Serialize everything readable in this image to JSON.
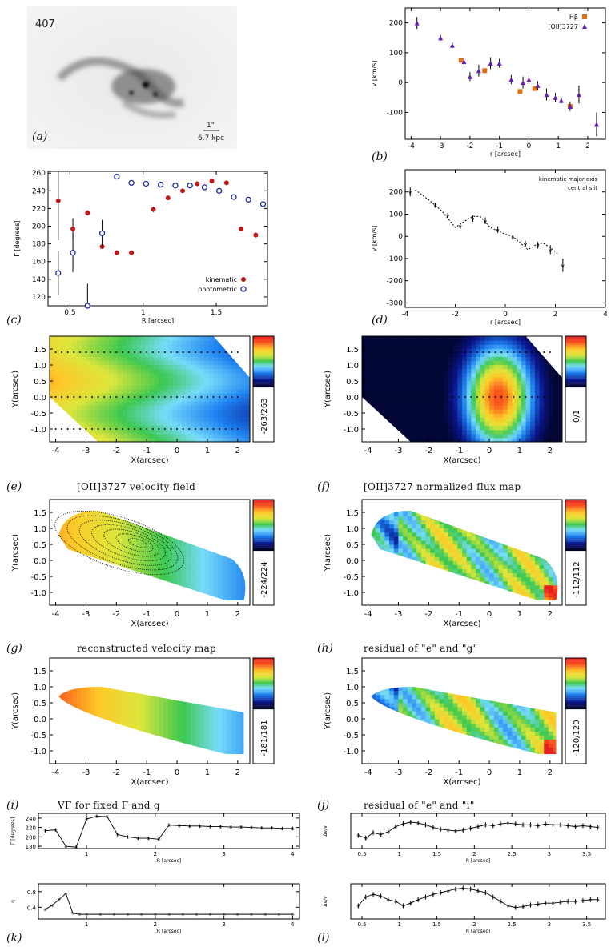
{
  "figure": {
    "labels": {
      "a": "(a)",
      "b": "(b)",
      "c": "(c)",
      "d": "(d)",
      "e": "(e)",
      "f": "(f)",
      "g": "(g)",
      "h": "(h)",
      "i": "(i)",
      "j": "(j)",
      "k": "(k)",
      "l": "(l)"
    },
    "titles": {
      "f": "[OII]3727 velocity field",
      "fmap": "[OII]3727 normalized flux map",
      "g": "reconstructed velocity map",
      "h": "residual of \"e\" and \"g\"",
      "i": "VF for fixed Γ and q",
      "j": "residual of \"e\" and \"i\""
    },
    "image_a": {
      "object": "407",
      "scale_bar": "1\"",
      "scale_text": "6.7 kpc"
    },
    "colorbars": {
      "e": "-263/263",
      "f": "0/1",
      "g": "-224/224",
      "h": "-112/112",
      "i": "-181/181",
      "j": "-120/120"
    },
    "colors": {
      "kinematic": "#c0181a",
      "photometric": "#1b2aa0",
      "ha": "#e07010",
      "oii": "#6a1fa8",
      "line": "#000000"
    }
  },
  "chart_data": [
    {
      "id": "b",
      "type": "scatter",
      "xlabel": "r [arcsec]",
      "ylabel": "v [km/s]",
      "xlim": [
        -4.2,
        2.6
      ],
      "ylim": [
        -190,
        250
      ],
      "xticks": [
        -4,
        -3,
        -2,
        -1,
        0,
        1,
        2
      ],
      "yticks": [
        -100,
        0,
        100,
        200
      ],
      "series": [
        {
          "name": "Hβ",
          "color": "#e07010",
          "marker": "square",
          "x": [
            -2.3,
            -1.5,
            -0.3,
            0.2,
            1.4
          ],
          "y": [
            75,
            40,
            -30,
            -20,
            -80
          ]
        },
        {
          "name": "[OII]3727",
          "color": "#6a1fa8",
          "marker": "triangle",
          "x": [
            -3.8,
            -3.0,
            -2.6,
            -2.2,
            -2.0,
            -1.7,
            -1.3,
            -1.0,
            -0.6,
            -0.2,
            0.0,
            0.3,
            0.6,
            0.9,
            1.1,
            1.4,
            1.7,
            2.3
          ],
          "y": [
            200,
            150,
            125,
            70,
            20,
            40,
            65,
            65,
            10,
            0,
            10,
            -10,
            -40,
            -50,
            -60,
            -80,
            -40,
            -140
          ],
          "err": [
            20,
            10,
            10,
            10,
            15,
            20,
            20,
            15,
            15,
            20,
            15,
            15,
            20,
            15,
            10,
            15,
            30,
            40
          ]
        }
      ],
      "legend": "top-right"
    },
    {
      "id": "c",
      "type": "scatter",
      "xlabel": "R [arcsec]",
      "ylabel": "Γ [degrees]",
      "xlim": [
        0.35,
        1.85
      ],
      "ylim": [
        110,
        262
      ],
      "xticks": [
        0.5,
        1.0,
        1.5
      ],
      "yticks": [
        120,
        140,
        160,
        180,
        200,
        220,
        240,
        260
      ],
      "series": [
        {
          "name": "kinematic",
          "color": "#c0181a",
          "marker": "circle",
          "x": [
            0.42,
            0.52,
            0.62,
            0.72,
            0.82,
            0.92,
            1.07,
            1.17,
            1.27,
            1.37,
            1.47,
            1.57,
            1.67,
            1.77
          ],
          "y": [
            229,
            197,
            215,
            177,
            170,
            170,
            219,
            232,
            240,
            248,
            251,
            249,
            197,
            190
          ],
          "err": [
            45,
            12,
            3,
            2,
            2,
            2,
            3,
            2,
            2,
            2,
            2,
            2,
            2,
            2
          ]
        },
        {
          "name": "photometric",
          "color": "#1b2aa0",
          "marker": "open-circle",
          "x": [
            0.42,
            0.52,
            0.62,
            0.72,
            0.82,
            0.92,
            1.02,
            1.12,
            1.22,
            1.32,
            1.42,
            1.52,
            1.62,
            1.72,
            1.82
          ],
          "y": [
            147,
            170,
            110,
            192,
            256,
            249,
            248,
            247,
            246,
            246,
            244,
            240,
            233,
            230,
            225
          ],
          "err": [
            25,
            22,
            25,
            15,
            3,
            2,
            2,
            2,
            2,
            2,
            2,
            2,
            3,
            3,
            3
          ]
        }
      ],
      "legend": "bottom-right"
    },
    {
      "id": "d",
      "type": "line",
      "xlabel": "r [arcsec]",
      "ylabel": "v [km/s]",
      "xlim": [
        -4,
        4
      ],
      "ylim": [
        -320,
        300
      ],
      "xticks": [
        -4,
        -2,
        0,
        2,
        4
      ],
      "yticks": [
        -300,
        -200,
        -100,
        0,
        100,
        200
      ],
      "series": [
        {
          "name": "kinematic major axis",
          "x": [
            -3.6,
            -2.9,
            -2.5,
            -2.0,
            -1.6,
            -1.3,
            -1.0,
            -0.6,
            0.0,
            0.3,
            0.6,
            0.9,
            1.2,
            1.5,
            1.8,
            2.1
          ],
          "y": [
            210,
            150,
            110,
            40,
            70,
            90,
            90,
            40,
            10,
            0,
            -30,
            -60,
            -40,
            -30,
            -50,
            -80
          ]
        },
        {
          "name": "central slit",
          "x": [
            -3.8,
            -2.8,
            -2.3,
            -1.8,
            -1.3,
            -0.8,
            -0.3,
            0.3,
            0.8,
            1.3,
            1.8,
            2.3
          ],
          "y": [
            200,
            140,
            95,
            45,
            80,
            70,
            30,
            -5,
            -35,
            -40,
            -60,
            -130
          ],
          "err": [
            20,
            10,
            10,
            10,
            15,
            15,
            15,
            10,
            15,
            15,
            20,
            30
          ]
        }
      ],
      "legend": "top-right"
    },
    {
      "id": "i2",
      "type": "line",
      "xlabel": "R [arcsec]",
      "ylabel": "Γ [degrees]",
      "xlim": [
        0.3,
        4.1
      ],
      "ylim": [
        175,
        250
      ],
      "xticks": [
        1,
        2,
        3,
        4
      ],
      "yticks": [
        180,
        200,
        220,
        240
      ],
      "x": [
        0.4,
        0.55,
        0.7,
        0.85,
        1.0,
        1.15,
        1.3,
        1.45,
        1.6,
        1.75,
        1.9,
        2.05,
        2.2,
        2.35,
        2.5,
        2.65,
        2.8,
        2.95,
        3.1,
        3.25,
        3.4,
        3.55,
        3.7,
        3.85,
        4.0
      ],
      "y": [
        213,
        215,
        180,
        178,
        238,
        244,
        243,
        205,
        200,
        197,
        197,
        195,
        225,
        224,
        223,
        223,
        222,
        222,
        221,
        221,
        220,
        219,
        219,
        218,
        218
      ]
    },
    {
      "id": "j2",
      "type": "line",
      "xlabel": "R [arcsec]",
      "ylabel": "Δv/v",
      "xlim": [
        0.35,
        3.75
      ],
      "ylim": [
        -0.2,
        0.2
      ],
      "xticks": [
        0.5,
        1.0,
        1.5,
        2.0,
        2.5,
        3.0,
        3.5
      ],
      "x": [
        0.45,
        0.55,
        0.65,
        0.75,
        0.85,
        0.95,
        1.05,
        1.15,
        1.25,
        1.35,
        1.45,
        1.55,
        1.65,
        1.75,
        1.85,
        1.95,
        2.05,
        2.15,
        2.25,
        2.35,
        2.45,
        2.55,
        2.65,
        2.75,
        2.85,
        2.95,
        3.05,
        3.15,
        3.25,
        3.35,
        3.45,
        3.55,
        3.65
      ],
      "y": [
        -0.05,
        -0.08,
        -0.02,
        -0.04,
        -0.01,
        0.05,
        0.08,
        0.1,
        0.09,
        0.07,
        0.04,
        0.02,
        0.01,
        0.0,
        0.01,
        0.03,
        0.05,
        0.07,
        0.06,
        0.08,
        0.09,
        0.08,
        0.07,
        0.07,
        0.06,
        0.08,
        0.07,
        0.07,
        0.06,
        0.05,
        0.06,
        0.05,
        0.04
      ]
    },
    {
      "id": "k",
      "type": "line",
      "xlabel": "R [arcsec]",
      "ylabel": "q",
      "xlim": [
        0.3,
        4.1
      ],
      "ylim": [
        0.1,
        1.0
      ],
      "xticks": [
        1,
        2,
        3,
        4
      ],
      "yticks": [
        0.4,
        0.8
      ],
      "x": [
        0.4,
        0.5,
        0.6,
        0.7,
        0.8,
        0.9,
        1.0,
        1.2,
        1.4,
        1.6,
        1.8,
        2.0,
        2.2,
        2.4,
        2.6,
        2.8,
        3.0,
        3.2,
        3.4,
        3.6,
        3.8,
        4.0
      ],
      "y": [
        0.35,
        0.45,
        0.6,
        0.75,
        0.25,
        0.22,
        0.22,
        0.22,
        0.22,
        0.22,
        0.22,
        0.22,
        0.22,
        0.22,
        0.22,
        0.22,
        0.22,
        0.22,
        0.22,
        0.22,
        0.22,
        0.22
      ]
    },
    {
      "id": "l",
      "type": "line",
      "xlabel": "R [arcsec]",
      "ylabel": "Δv/v",
      "xlim": [
        0.35,
        3.75
      ],
      "ylim": [
        -0.1,
        0.3
      ],
      "xticks": [
        0.5,
        1.0,
        1.5,
        2.0,
        2.5,
        3.0,
        3.5
      ],
      "x": [
        0.45,
        0.55,
        0.65,
        0.75,
        0.85,
        0.95,
        1.05,
        1.15,
        1.25,
        1.35,
        1.45,
        1.55,
        1.65,
        1.75,
        1.85,
        1.95,
        2.05,
        2.15,
        2.25,
        2.35,
        2.45,
        2.55,
        2.65,
        2.75,
        2.85,
        2.95,
        3.05,
        3.15,
        3.25,
        3.35,
        3.45,
        3.55,
        3.65
      ],
      "y": [
        0.05,
        0.15,
        0.18,
        0.16,
        0.12,
        0.1,
        0.05,
        0.08,
        0.12,
        0.15,
        0.18,
        0.2,
        0.22,
        0.24,
        0.25,
        0.24,
        0.22,
        0.2,
        0.15,
        0.1,
        0.05,
        0.03,
        0.04,
        0.06,
        0.07,
        0.08,
        0.08,
        0.09,
        0.1,
        0.1,
        0.11,
        0.12,
        0.12
      ]
    }
  ]
}
